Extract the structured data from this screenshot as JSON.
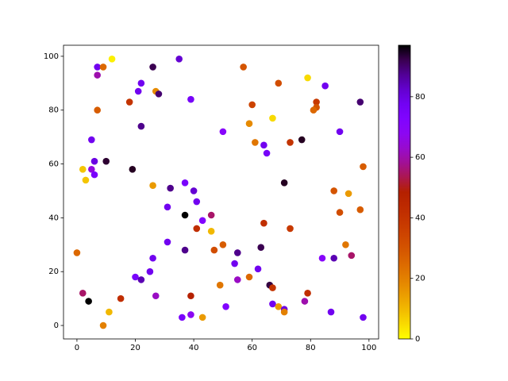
{
  "chart_data": {
    "type": "scatter",
    "x": [
      12,
      7,
      9,
      26,
      35,
      7,
      22,
      21,
      27,
      28,
      18,
      39,
      7,
      22,
      5,
      6,
      10,
      19,
      2,
      5,
      6,
      3,
      26,
      32,
      37,
      40,
      41,
      37,
      31,
      43,
      46,
      41,
      46,
      31,
      37,
      26,
      25,
      20,
      22,
      0,
      2,
      4,
      15,
      27,
      11,
      9,
      39,
      36,
      39,
      43,
      50,
      57,
      69,
      60,
      59,
      67,
      61,
      64,
      65,
      73,
      77,
      79,
      85,
      82,
      82,
      81,
      97,
      90,
      71,
      98,
      88,
      93,
      90,
      97,
      64,
      73,
      47,
      50,
      55,
      54,
      63,
      62,
      55,
      59,
      49,
      66,
      67,
      79,
      84,
      88,
      92,
      94,
      78,
      67,
      69,
      71,
      71,
      87,
      98,
      51
    ],
    "values": [
      99,
      96,
      96,
      96,
      99,
      93,
      90,
      87,
      87,
      86,
      83,
      84,
      80,
      74,
      69,
      61,
      61,
      58,
      58,
      58,
      56,
      54,
      52,
      51,
      53,
      50,
      46,
      41,
      44,
      39,
      41,
      36,
      35,
      31,
      28,
      25,
      20,
      18,
      17,
      27,
      12,
      9,
      10,
      11,
      5,
      0,
      11,
      3,
      4,
      3,
      72,
      96,
      90,
      82,
      75,
      77,
      68,
      67,
      64,
      68,
      69,
      92,
      89,
      83,
      81,
      80,
      83,
      72,
      53,
      59,
      50,
      49,
      42,
      43,
      38,
      36,
      28,
      30,
      27,
      23,
      29,
      21,
      17,
      18,
      15,
      15,
      14,
      12,
      25,
      25,
      30,
      26,
      9,
      8,
      7,
      6,
      5,
      5,
      3,
      7
    ],
    "c": [
      2,
      78,
      25,
      92,
      82,
      60,
      78,
      78,
      18,
      90,
      40,
      76,
      28,
      88,
      78,
      80,
      94,
      95,
      8,
      65,
      75,
      8,
      15,
      88,
      75,
      82,
      78,
      97,
      78,
      72,
      55,
      42,
      10,
      78,
      88,
      78,
      78,
      75,
      85,
      25,
      55,
      97,
      42,
      62,
      10,
      20,
      48,
      75,
      68,
      15,
      70,
      30,
      32,
      35,
      18,
      5,
      22,
      78,
      76,
      40,
      95,
      5,
      78,
      38,
      30,
      25,
      90,
      78,
      95,
      28,
      30,
      15,
      32,
      28,
      42,
      38,
      32,
      28,
      88,
      78,
      92,
      78,
      62,
      25,
      22,
      93,
      40,
      42,
      70,
      85,
      22,
      55,
      60,
      78,
      15,
      80,
      20,
      78,
      78,
      72
    ],
    "colormap": "gnuplot_r",
    "clim": [
      0,
      97
    ],
    "cticks": [
      0,
      20,
      40,
      60,
      80
    ],
    "xlim": [
      -4.6,
      103.3
    ],
    "xticks": [
      0,
      20,
      40,
      60,
      80,
      100
    ],
    "ylim": [
      -5,
      104.1
    ],
    "yticks": [
      0,
      20,
      40,
      60,
      80,
      100
    ]
  }
}
